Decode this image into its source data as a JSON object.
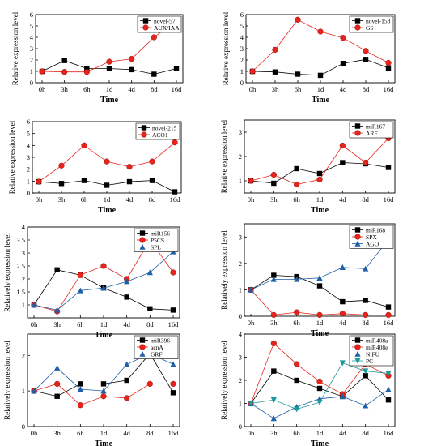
{
  "chart_data": [
    {
      "type": "line",
      "xlabel": "Time",
      "ylabel": "Relative expression level",
      "categories": [
        "0h",
        "3h",
        "6h",
        "1d",
        "4d",
        "8d",
        "16d"
      ],
      "ylim": [
        0,
        6
      ],
      "yticks": [
        0,
        1,
        2,
        3,
        4,
        5,
        6
      ],
      "legend": "top-right",
      "series": [
        {
          "name": "novel-57",
          "color": "#000000",
          "marker": "square",
          "values": [
            1.0,
            1.95,
            1.25,
            1.25,
            1.15,
            0.75,
            1.25
          ]
        },
        {
          "name": "AUX/IAA",
          "color": "#e8231b",
          "marker": "circle",
          "values": [
            1.0,
            0.95,
            0.95,
            1.85,
            2.1,
            4.0,
            5.5
          ]
        }
      ]
    },
    {
      "type": "line",
      "xlabel": "Time",
      "ylabel": "Relative expression level",
      "categories": [
        "0h",
        "3h",
        "6h",
        "1d",
        "4d",
        "8d",
        "16d"
      ],
      "ylim": [
        0,
        6
      ],
      "yticks": [
        0,
        1,
        2,
        3,
        4,
        5,
        6
      ],
      "legend": "top-right",
      "series": [
        {
          "name": "novel-158",
          "color": "#000000",
          "marker": "square",
          "values": [
            1.0,
            0.95,
            0.75,
            0.65,
            1.7,
            2.05,
            1.3
          ]
        },
        {
          "name": "GS",
          "color": "#e8231b",
          "marker": "circle",
          "values": [
            1.0,
            2.9,
            5.55,
            4.5,
            3.95,
            2.8,
            1.75
          ]
        }
      ]
    },
    {
      "type": "line",
      "xlabel": "Time",
      "ylabel": "Relative expression level",
      "categories": [
        "0h",
        "3h",
        "6h",
        "1d",
        "4d",
        "8d",
        "16d"
      ],
      "ylim": [
        0,
        6
      ],
      "yticks": [
        0,
        1,
        2,
        3,
        4,
        5,
        6
      ],
      "legend": "top-right",
      "series": [
        {
          "name": "novel-215",
          "color": "#000000",
          "marker": "square",
          "values": [
            0.95,
            0.8,
            1.05,
            0.65,
            0.95,
            1.05,
            0.1
          ]
        },
        {
          "name": "ACO1",
          "color": "#e8231b",
          "marker": "circle",
          "values": [
            0.95,
            2.3,
            4.0,
            2.65,
            2.2,
            2.65,
            4.25
          ]
        }
      ]
    },
    {
      "type": "line",
      "xlabel": "Time",
      "ylabel": "Relative expression level",
      "categories": [
        "0h",
        "3h",
        "6h",
        "1d",
        "4d",
        "8d",
        "16d"
      ],
      "ylim": [
        0.5,
        3.5
      ],
      "yticks": [
        1,
        2,
        3
      ],
      "legend": "top-right",
      "series": [
        {
          "name": "miR167",
          "color": "#000000",
          "marker": "square",
          "values": [
            1.0,
            0.9,
            1.5,
            1.3,
            1.75,
            1.7,
            1.55
          ]
        },
        {
          "name": "ARF",
          "color": "#e8231b",
          "marker": "circle",
          "values": [
            1.0,
            1.25,
            0.85,
            1.05,
            2.45,
            1.75,
            2.75
          ]
        }
      ]
    },
    {
      "type": "line",
      "xlabel": "Time",
      "ylabel": "Relatively expression level",
      "categories": [
        "0h",
        "3h",
        "6h",
        "1d",
        "4d",
        "8d",
        "16d"
      ],
      "ylim": [
        0.5,
        4
      ],
      "yticks": [
        1,
        1.5,
        2,
        2.5,
        3,
        3.5,
        4
      ],
      "legend": "top-right",
      "series": [
        {
          "name": "miR156",
          "color": "#000000",
          "marker": "square",
          "values": [
            1.0,
            2.35,
            2.15,
            1.65,
            1.3,
            0.85,
            0.8
          ]
        },
        {
          "name": "P5CS",
          "color": "#e8231b",
          "marker": "circle",
          "values": [
            1.0,
            0.75,
            2.15,
            2.5,
            2.0,
            3.5,
            2.25
          ]
        },
        {
          "name": "SPL",
          "color": "#1f5fa8",
          "marker": "triangle",
          "values": [
            1.0,
            0.8,
            1.55,
            1.65,
            1.9,
            2.25,
            3.05
          ]
        }
      ]
    },
    {
      "type": "line",
      "xlabel": "Time",
      "ylabel": "Relatively expression level",
      "categories": [
        "0h",
        "3h",
        "6h",
        "1d",
        "4d",
        "8d",
        "16d"
      ],
      "ylim": [
        0,
        3.5
      ],
      "yticks": [
        0,
        1,
        2,
        3
      ],
      "legend": "top-right",
      "series": [
        {
          "name": "miR168",
          "color": "#000000",
          "marker": "square",
          "values": [
            1.0,
            1.55,
            1.5,
            1.15,
            0.55,
            0.6,
            0.35
          ]
        },
        {
          "name": "SPX",
          "color": "#e8231b",
          "marker": "circle",
          "values": [
            1.0,
            0.05,
            0.15,
            0.05,
            0.1,
            0.05,
            0.05
          ]
        },
        {
          "name": "AGO",
          "color": "#1f5fa8",
          "marker": "triangle",
          "values": [
            1.0,
            1.4,
            1.4,
            1.45,
            1.85,
            1.8,
            2.9
          ]
        }
      ]
    },
    {
      "type": "line",
      "xlabel": "Time",
      "ylabel": "Relatively expression level",
      "categories": [
        "0h",
        "3h",
        "6h",
        "1d",
        "4d",
        "8d",
        "16d"
      ],
      "ylim": [
        0,
        2.6
      ],
      "yticks": [
        0,
        1,
        2
      ],
      "legend": "top-right",
      "series": [
        {
          "name": "miR396",
          "color": "#000000",
          "marker": "square",
          "values": [
            1.0,
            0.85,
            1.2,
            1.2,
            1.3,
            2.05,
            0.95
          ]
        },
        {
          "name": "acnA",
          "color": "#e8231b",
          "marker": "circle",
          "values": [
            1.0,
            1.2,
            0.6,
            0.85,
            0.8,
            1.2,
            1.2
          ]
        },
        {
          "name": "GRF",
          "color": "#1f5fa8",
          "marker": "triangle",
          "values": [
            1.0,
            1.65,
            1.05,
            1.0,
            1.75,
            2.05,
            1.75
          ]
        }
      ]
    },
    {
      "type": "line",
      "xlabel": "Time",
      "ylabel": "Relatively expression level",
      "categories": [
        "0h",
        "3h",
        "6h",
        "1d",
        "4d",
        "8d",
        "16d"
      ],
      "ylim": [
        0,
        4
      ],
      "yticks": [
        0,
        1,
        2,
        3,
        4
      ],
      "legend": "top-right",
      "series": [
        {
          "name": "miR408a",
          "color": "#000000",
          "marker": "square",
          "values": [
            1.0,
            2.4,
            2.0,
            1.65,
            1.3,
            2.2,
            1.15
          ]
        },
        {
          "name": "miR408e",
          "color": "#e8231b",
          "marker": "circle",
          "values": [
            1.0,
            3.6,
            2.7,
            1.95,
            1.4,
            2.7,
            2.2
          ]
        },
        {
          "name": "NiFU",
          "color": "#1f5fa8",
          "marker": "triangle",
          "values": [
            1.0,
            0.35,
            0.85,
            1.2,
            1.3,
            0.9,
            1.6
          ]
        },
        {
          "name": "PC",
          "color": "#1a9a9a",
          "marker": "invtriangle",
          "values": [
            1.0,
            1.15,
            0.75,
            1.05,
            2.75,
            2.4,
            2.3
          ]
        }
      ]
    }
  ]
}
